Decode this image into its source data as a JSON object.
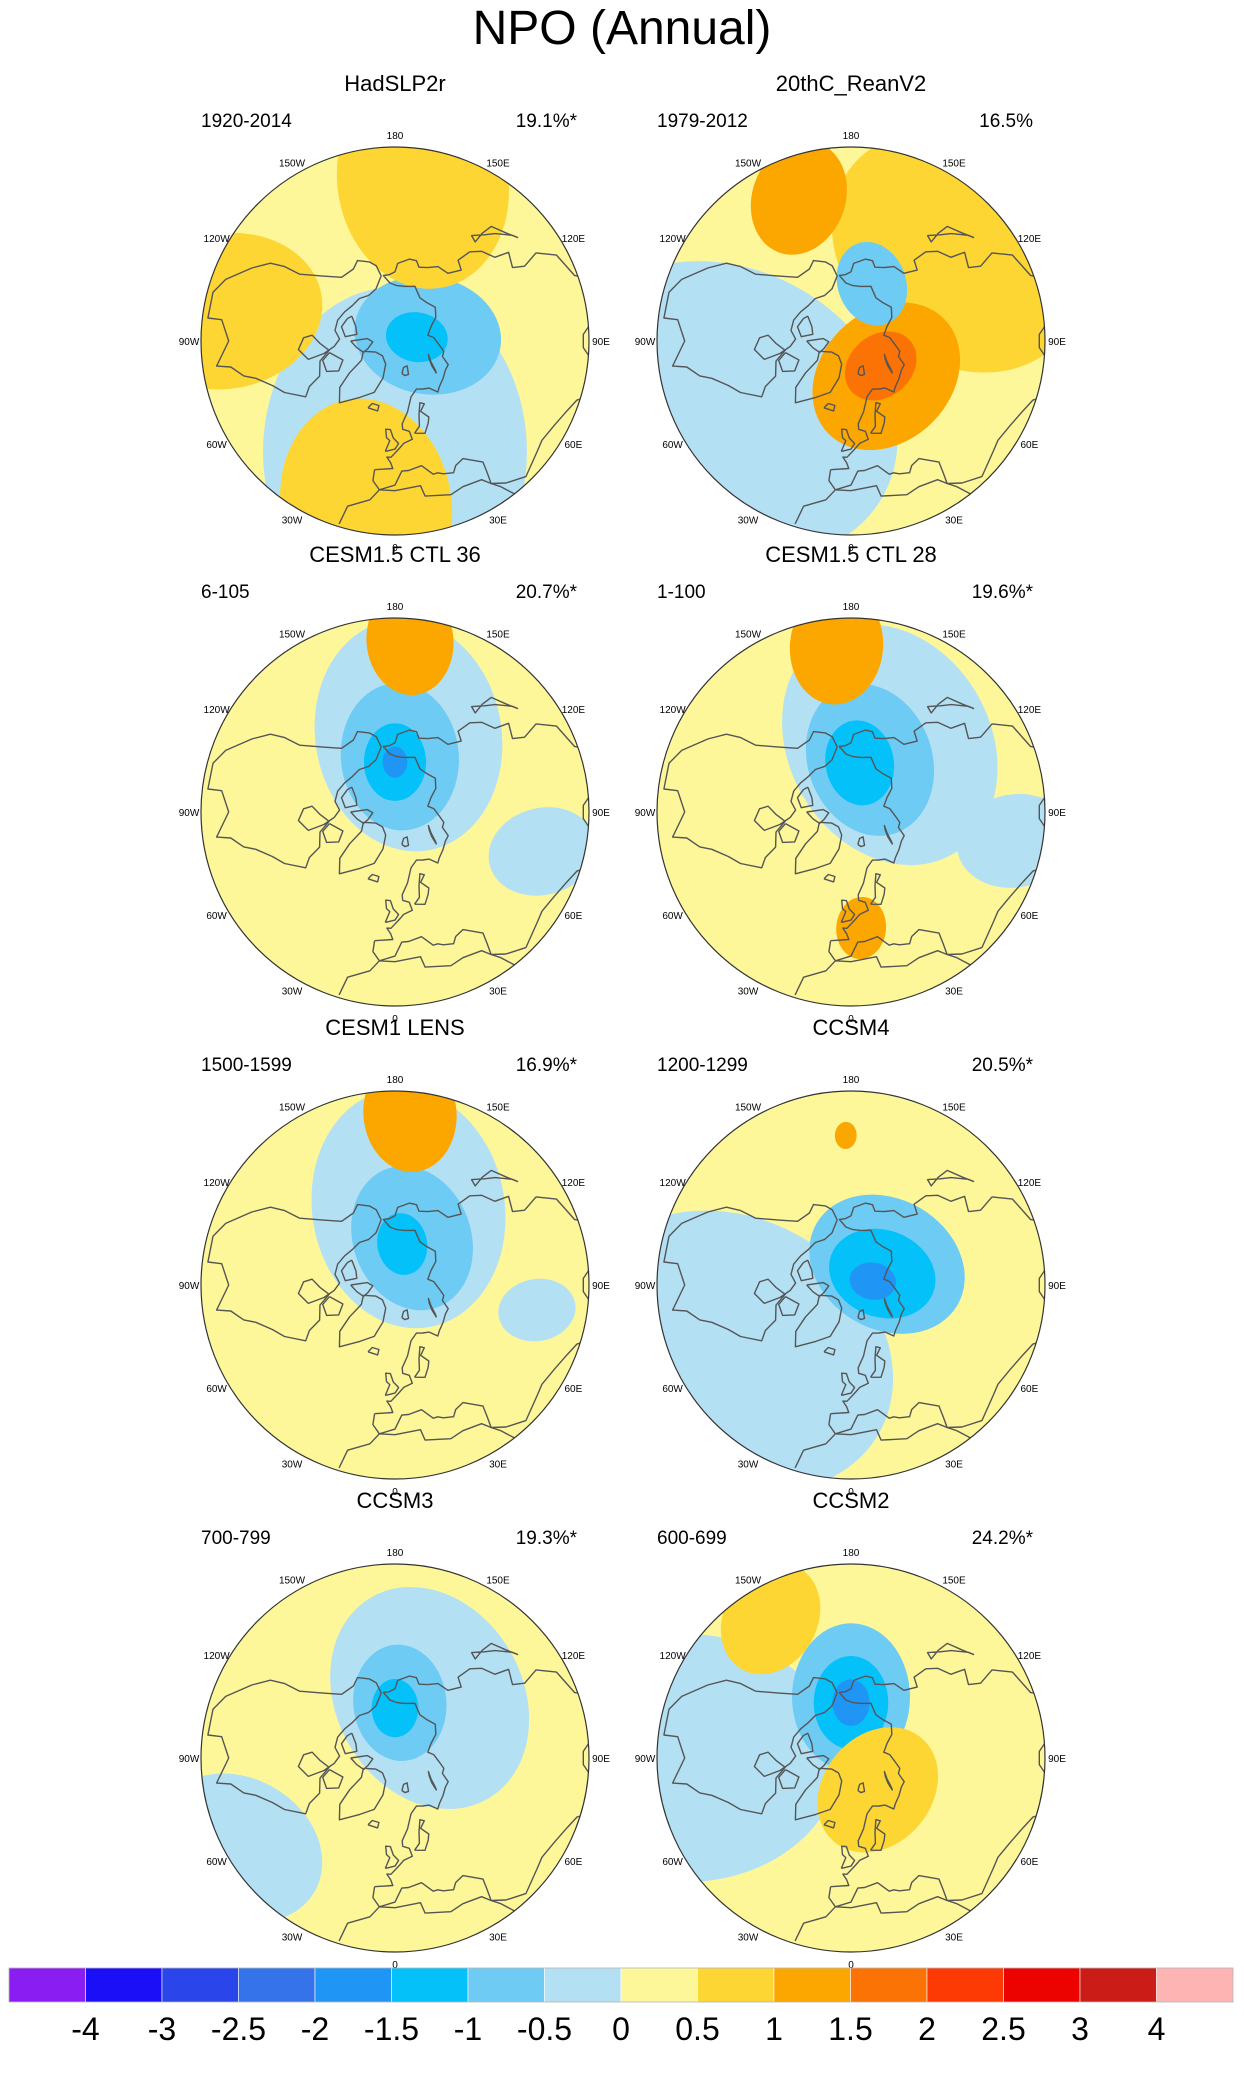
{
  "chart_data": {
    "type": "polar-contour-map-panels",
    "title": "NPO (Annual)",
    "projection": "Northern Hemisphere polar stereographic",
    "longitude_labels": [
      "180",
      "150E",
      "120E",
      "90E",
      "60E",
      "30E",
      "0",
      "30W",
      "60W",
      "90W",
      "120W",
      "150W"
    ],
    "colorbar": {
      "levels": [
        "-4",
        "-3",
        "-2.5",
        "-2",
        "-1.5",
        "-1",
        "-0.5",
        "0",
        "0.5",
        "1",
        "1.5",
        "2",
        "2.5",
        "3",
        "4"
      ],
      "colors": [
        "#8a1ef2",
        "#1a0ff7",
        "#2a45e9",
        "#3473ea",
        "#1f96f5",
        "#04c2f9",
        "#6ecbf4",
        "#b4e0f4",
        "#fdf79a",
        "#fdd634",
        "#fca600",
        "#fb7304",
        "#fd3a03",
        "#ec0300",
        "#cb1c17",
        "#fdb4b2"
      ]
    },
    "panels": [
      {
        "title": "HadSLP2r",
        "period": "1920-2014",
        "variance": "19.1%*",
        "features": [
          {
            "kind": "neg",
            "level": -0.5,
            "lon": 0,
            "lat": 50,
            "size": 0.85
          },
          {
            "kind": "neg",
            "level": -1,
            "lon": 100,
            "lat": 78,
            "size": 0.38
          },
          {
            "kind": "neg",
            "level": -1.5,
            "lon": 100,
            "lat": 82,
            "size": 0.16
          },
          {
            "kind": "pos",
            "level": 0.5,
            "lon": 170,
            "lat": 32,
            "size": 0.55
          },
          {
            "kind": "pos",
            "level": 0.5,
            "lon": -100,
            "lat": 28,
            "size": 0.5
          },
          {
            "kind": "pos",
            "level": 0.5,
            "lon": -10,
            "lat": 30,
            "size": 0.55
          }
        ]
      },
      {
        "title": "20thC_ReanV2",
        "period": "1979-2012",
        "variance": "16.5%",
        "features": [
          {
            "kind": "neg",
            "level": -0.5,
            "lon": -60,
            "lat": 40,
            "size": 0.9
          },
          {
            "kind": "pos",
            "level": 0.5,
            "lon": 130,
            "lat": 40,
            "size": 0.7
          },
          {
            "kind": "pos",
            "level": 1,
            "lon": 45,
            "lat": 72,
            "size": 0.42
          },
          {
            "kind": "pos",
            "level": 1.5,
            "lon": 50,
            "lat": 76,
            "size": 0.2
          },
          {
            "kind": "pos",
            "level": 1,
            "lon": -160,
            "lat": 35,
            "size": 0.3
          },
          {
            "kind": "neg",
            "level": -1,
            "lon": 160,
            "lat": 68,
            "size": 0.22
          }
        ]
      },
      {
        "title": "CESM1.5 CTL 36",
        "period": "6-105",
        "variance": "20.7%*",
        "features": [
          {
            "kind": "neg",
            "level": -0.5,
            "lon": 170,
            "lat": 62,
            "size": 0.6
          },
          {
            "kind": "neg",
            "level": -1,
            "lon": 175,
            "lat": 70,
            "size": 0.38
          },
          {
            "kind": "neg",
            "level": -1.5,
            "lon": 180,
            "lat": 72,
            "size": 0.2
          },
          {
            "kind": "neg",
            "level": -2,
            "lon": 180,
            "lat": 72,
            "size": 0.08
          },
          {
            "kind": "neg",
            "level": -0.5,
            "lon": 75,
            "lat": 35,
            "size": 0.28
          },
          {
            "kind": "pos",
            "level": 1,
            "lon": 175,
            "lat": 28,
            "size": 0.28
          }
        ]
      },
      {
        "title": "CESM1.5 CTL 28",
        "period": "1-100",
        "variance": "19.6%*",
        "features": [
          {
            "kind": "neg",
            "level": -0.5,
            "lon": 150,
            "lat": 62,
            "size": 0.65
          },
          {
            "kind": "neg",
            "level": -1,
            "lon": 160,
            "lat": 70,
            "size": 0.4
          },
          {
            "kind": "neg",
            "level": -1.5,
            "lon": 170,
            "lat": 72,
            "size": 0.22
          },
          {
            "kind": "neg",
            "level": -0.5,
            "lon": 80,
            "lat": 30,
            "size": 0.3
          },
          {
            "kind": "pos",
            "level": 1,
            "lon": -175,
            "lat": 30,
            "size": 0.3
          },
          {
            "kind": "pos",
            "level": 1,
            "lon": 5,
            "lat": 48,
            "size": 0.16
          }
        ]
      },
      {
        "title": "CESM1 LENS",
        "period": "1500-1599",
        "variance": "16.9%*",
        "features": [
          {
            "kind": "neg",
            "level": -0.5,
            "lon": 170,
            "lat": 62,
            "size": 0.62
          },
          {
            "kind": "neg",
            "level": -1,
            "lon": 160,
            "lat": 72,
            "size": 0.38
          },
          {
            "kind": "neg",
            "level": -1.5,
            "lon": 170,
            "lat": 75,
            "size": 0.16
          },
          {
            "kind": "neg",
            "level": -0.5,
            "lon": 80,
            "lat": 38,
            "size": 0.2
          },
          {
            "kind": "pos",
            "level": 1,
            "lon": 175,
            "lat": 28,
            "size": 0.3
          }
        ]
      },
      {
        "title": "CCSM4",
        "period": "1200-1299",
        "variance": "20.5%*",
        "features": [
          {
            "kind": "neg",
            "level": -0.5,
            "lon": -60,
            "lat": 42,
            "size": 0.85
          },
          {
            "kind": "neg",
            "level": -1,
            "lon": 120,
            "lat": 75,
            "size": 0.42
          },
          {
            "kind": "neg",
            "level": -1.5,
            "lon": 110,
            "lat": 78,
            "size": 0.28
          },
          {
            "kind": "neg",
            "level": -2,
            "lon": 100,
            "lat": 82,
            "size": 0.12
          },
          {
            "kind": "pos",
            "level": 1,
            "lon": -178,
            "lat": 36,
            "size": 0.07
          }
        ]
      },
      {
        "title": "CCSM3",
        "period": "700-799",
        "variance": "19.3%*",
        "features": [
          {
            "kind": "neg",
            "level": -0.5,
            "lon": 150,
            "lat": 65,
            "size": 0.6
          },
          {
            "kind": "neg",
            "level": -1,
            "lon": 175,
            "lat": 70,
            "size": 0.3
          },
          {
            "kind": "neg",
            "level": -1.5,
            "lon": 180,
            "lat": 72,
            "size": 0.15
          },
          {
            "kind": "neg",
            "level": -0.5,
            "lon": -60,
            "lat": 25,
            "size": 0.45
          }
        ]
      },
      {
        "title": "CCSM2",
        "period": "600-699",
        "variance": "24.2%*",
        "features": [
          {
            "kind": "neg",
            "level": -0.5,
            "lon": -90,
            "lat": 30,
            "size": 0.8
          },
          {
            "kind": "neg",
            "level": -1,
            "lon": 180,
            "lat": 68,
            "size": 0.38
          },
          {
            "kind": "neg",
            "level": -1.5,
            "lon": 180,
            "lat": 70,
            "size": 0.24
          },
          {
            "kind": "neg",
            "level": -2,
            "lon": 180,
            "lat": 70,
            "size": 0.12
          },
          {
            "kind": "pos",
            "level": 0.5,
            "lon": 40,
            "lat": 75,
            "size": 0.35
          },
          {
            "kind": "pos",
            "level": 0.5,
            "lon": -150,
            "lat": 32,
            "size": 0.3
          }
        ]
      }
    ]
  }
}
